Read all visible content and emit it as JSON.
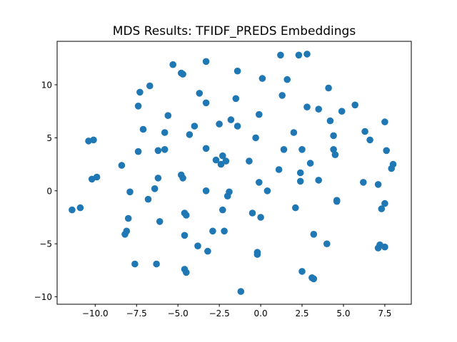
{
  "chart_data": {
    "type": "scatter",
    "title": "MDS Results: TFIDF_PREDS Embeddings",
    "xlabel": "",
    "ylabel": "",
    "xlim": [
      -12.3,
      9.1
    ],
    "ylim": [
      -10.7,
      14.1
    ],
    "grid": false,
    "marker_color": "#1f77b4",
    "x_ticks": [
      -10.0,
      -7.5,
      -5.0,
      -2.5,
      0.0,
      2.5,
      5.0,
      7.5
    ],
    "x_tick_labels": [
      "−10.0",
      "−7.5",
      "−5.0",
      "−2.5",
      "0.0",
      "2.5",
      "5.0",
      "7.5"
    ],
    "y_ticks": [
      -10,
      -5,
      0,
      5,
      10
    ],
    "y_tick_labels": [
      "−10",
      "−5",
      "0",
      "5",
      "10"
    ],
    "points": [
      [
        -11.4,
        -1.8
      ],
      [
        -10.9,
        -1.6
      ],
      [
        -10.4,
        4.7
      ],
      [
        -10.1,
        4.8
      ],
      [
        -10.2,
        1.1
      ],
      [
        -9.9,
        1.3
      ],
      [
        -8.4,
        2.4
      ],
      [
        -8.2,
        -4.1
      ],
      [
        -8.1,
        -3.8
      ],
      [
        -8.0,
        -2.6
      ],
      [
        -7.9,
        -0.1
      ],
      [
        -7.6,
        -6.9
      ],
      [
        -7.4,
        8.0
      ],
      [
        -7.4,
        3.7
      ],
      [
        -7.3,
        9.3
      ],
      [
        -7.1,
        5.8
      ],
      [
        -6.8,
        -0.8
      ],
      [
        -6.7,
        9.9
      ],
      [
        -6.4,
        0.2
      ],
      [
        -6.3,
        -6.9
      ],
      [
        -6.2,
        3.8
      ],
      [
        -6.2,
        1.2
      ],
      [
        -6.1,
        -2.9
      ],
      [
        -5.8,
        3.9
      ],
      [
        -5.8,
        5.5
      ],
      [
        -5.6,
        7.1
      ],
      [
        -5.3,
        11.9
      ],
      [
        -4.8,
        11.1
      ],
      [
        -4.7,
        11.0
      ],
      [
        -4.8,
        1.5
      ],
      [
        -4.7,
        1.2
      ],
      [
        -4.6,
        -2.1
      ],
      [
        -4.5,
        -2.3
      ],
      [
        -4.6,
        -4.2
      ],
      [
        -4.6,
        -7.4
      ],
      [
        -4.5,
        -7.7
      ],
      [
        -4.3,
        5.3
      ],
      [
        -4.0,
        6.1
      ],
      [
        -3.8,
        -5.2
      ],
      [
        -3.7,
        9.2
      ],
      [
        -3.3,
        12.2
      ],
      [
        -3.3,
        8.3
      ],
      [
        -3.3,
        4.0
      ],
      [
        -3.3,
        0.0
      ],
      [
        -3.2,
        -5.7
      ],
      [
        -2.9,
        -3.8
      ],
      [
        -2.7,
        2.9
      ],
      [
        -2.5,
        6.3
      ],
      [
        -2.4,
        2.5
      ],
      [
        -2.3,
        3.3
      ],
      [
        -2.2,
        -3.8
      ],
      [
        -2.3,
        -1.8
      ],
      [
        -2.1,
        2.8
      ],
      [
        -2.0,
        -0.5
      ],
      [
        -1.9,
        -0.1
      ],
      [
        -1.8,
        6.7
      ],
      [
        -1.5,
        8.7
      ],
      [
        -1.4,
        6.1
      ],
      [
        -1.4,
        11.3
      ],
      [
        -1.2,
        -9.5
      ],
      [
        -0.7,
        2.8
      ],
      [
        -0.5,
        -2.1
      ],
      [
        -0.3,
        5.0
      ],
      [
        -0.2,
        -6.0
      ],
      [
        -0.2,
        -5.8
      ],
      [
        -0.1,
        0.8
      ],
      [
        -0.1,
        7.2
      ],
      [
        0.1,
        10.6
      ],
      [
        0.0,
        -2.5
      ],
      [
        0.4,
        0.0
      ],
      [
        1.1,
        2.0
      ],
      [
        1.2,
        12.8
      ],
      [
        1.3,
        9.0
      ],
      [
        1.4,
        3.9
      ],
      [
        1.6,
        10.5
      ],
      [
        2.0,
        5.5
      ],
      [
        2.1,
        -1.6
      ],
      [
        2.3,
        12.8
      ],
      [
        2.4,
        1.7
      ],
      [
        2.4,
        0.9
      ],
      [
        2.5,
        3.9
      ],
      [
        2.5,
        -7.6
      ],
      [
        2.8,
        12.9
      ],
      [
        2.8,
        7.9
      ],
      [
        3.0,
        2.6
      ],
      [
        3.1,
        -8.2
      ],
      [
        3.2,
        -8.3
      ],
      [
        3.2,
        -4.1
      ],
      [
        3.5,
        7.7
      ],
      [
        3.5,
        1.0
      ],
      [
        4.0,
        -5.0
      ],
      [
        4.1,
        9.7
      ],
      [
        4.2,
        6.6
      ],
      [
        4.4,
        5.2
      ],
      [
        4.4,
        3.9
      ],
      [
        4.5,
        3.4
      ],
      [
        4.6,
        -0.9
      ],
      [
        4.6,
        -1.0
      ],
      [
        4.9,
        7.5
      ],
      [
        5.7,
        8.1
      ],
      [
        6.2,
        0.8
      ],
      [
        6.3,
        5.6
      ],
      [
        6.6,
        4.8
      ],
      [
        7.1,
        0.6
      ],
      [
        7.1,
        -5.4
      ],
      [
        7.2,
        -5.1
      ],
      [
        7.3,
        -1.7
      ],
      [
        7.5,
        6.5
      ],
      [
        7.5,
        -1.2
      ],
      [
        7.5,
        -5.3
      ],
      [
        7.6,
        3.8
      ],
      [
        7.9,
        2.1
      ],
      [
        8.0,
        2.5
      ]
    ]
  }
}
